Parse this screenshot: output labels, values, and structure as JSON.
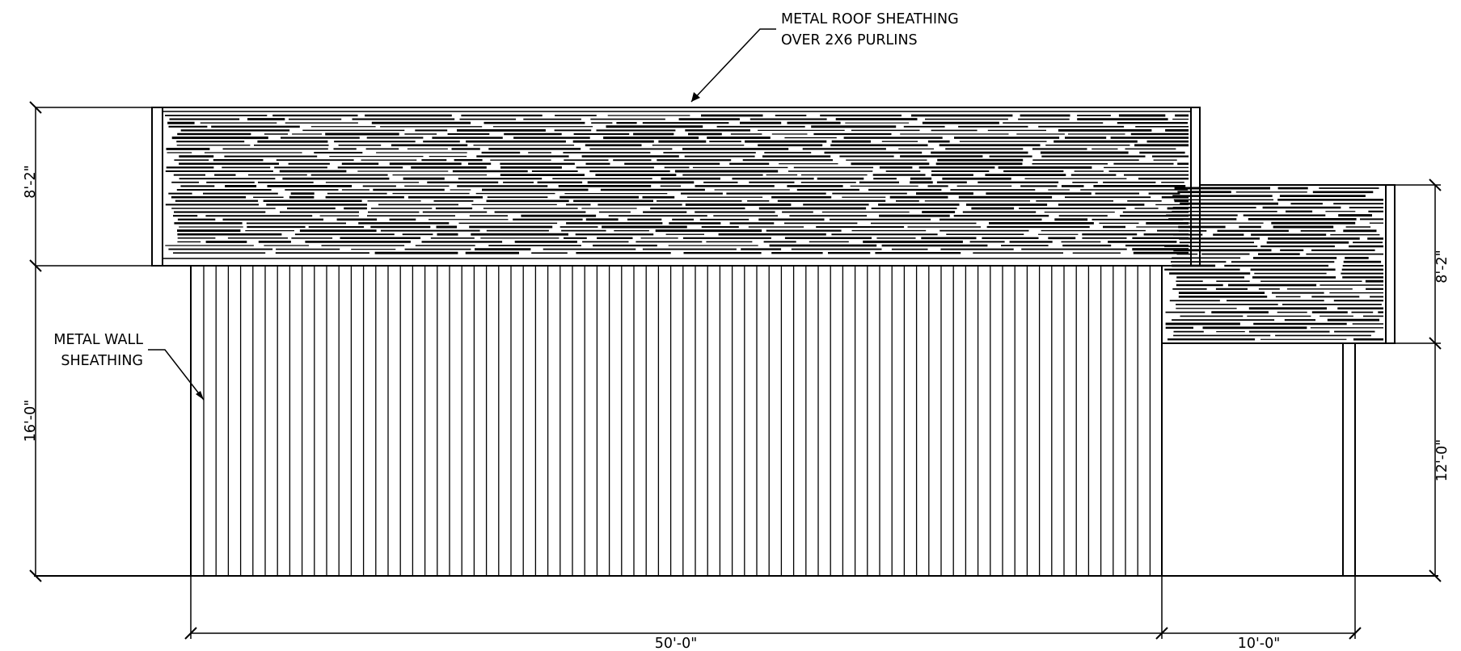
{
  "labels": {
    "roof_line1": "METAL ROOF SHEATHING",
    "roof_line2": "OVER 2X6 PURLINS",
    "wall_line1": "METAL WALL",
    "wall_line2": "SHEATHING"
  },
  "dimensions": {
    "main_roof_height": "8'-2\"",
    "main_wall_height": "16'-0\"",
    "annex_roof_height": "8'-2\"",
    "annex_wall_height": "12'-0\"",
    "main_length": "50'-0\"",
    "annex_length": "10'-0\""
  },
  "colors": {
    "ink": "#000000",
    "paper": "#ffffff"
  }
}
